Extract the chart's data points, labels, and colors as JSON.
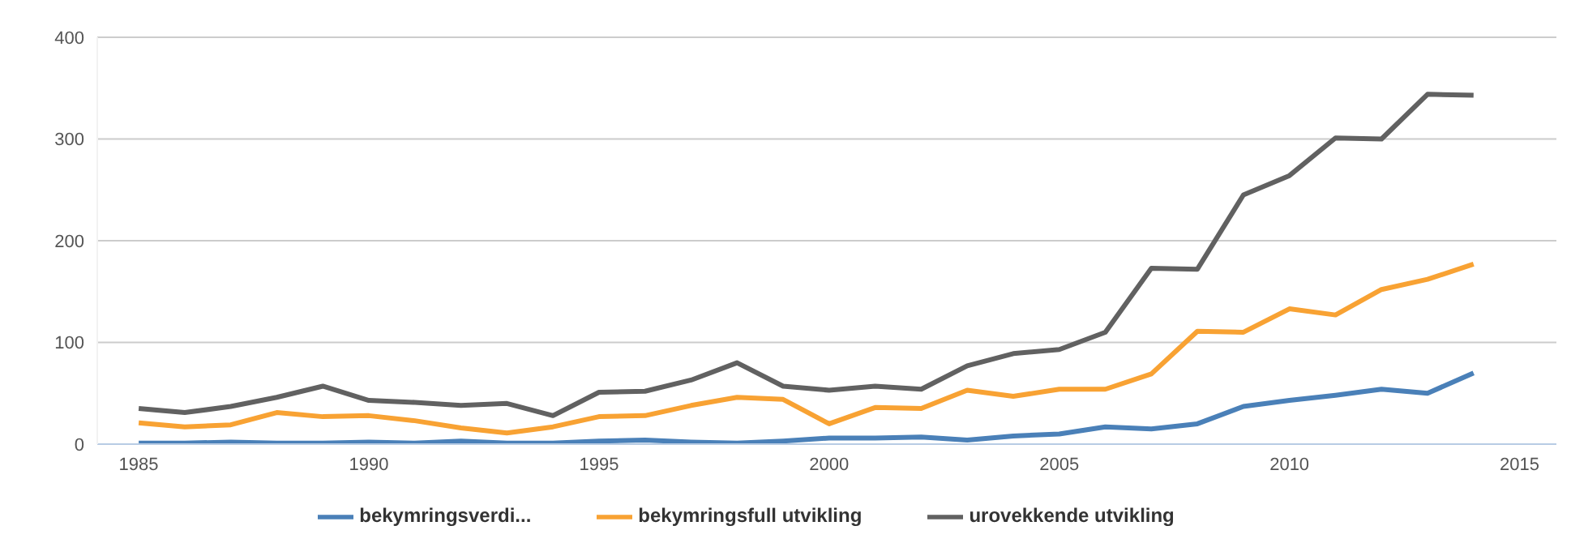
{
  "chart_data": {
    "type": "line",
    "x": [
      1985,
      1986,
      1987,
      1988,
      1989,
      1990,
      1991,
      1992,
      1993,
      1994,
      1995,
      1996,
      1997,
      1998,
      1999,
      2000,
      2001,
      2002,
      2003,
      2004,
      2005,
      2006,
      2007,
      2008,
      2009,
      2010,
      2011,
      2012,
      2013,
      2014
    ],
    "series": [
      {
        "name": "bekymringsverdi...",
        "color": "#4a80b8",
        "values": [
          1,
          1,
          2,
          1,
          1,
          2,
          1,
          3,
          1,
          1,
          3,
          4,
          2,
          1,
          3,
          6,
          6,
          7,
          4,
          8,
          10,
          17,
          15,
          20,
          37,
          43,
          48,
          54,
          50,
          70
        ]
      },
      {
        "name": "bekymringsfull utvikling",
        "color": "#f8a233",
        "values": [
          21,
          17,
          19,
          31,
          27,
          28,
          23,
          16,
          11,
          17,
          27,
          28,
          38,
          46,
          44,
          20,
          36,
          35,
          53,
          47,
          54,
          54,
          69,
          111,
          110,
          133,
          127,
          152,
          162,
          177
        ]
      },
      {
        "name": "urovekkende utvikling",
        "color": "#616161",
        "values": [
          35,
          31,
          37,
          46,
          57,
          43,
          41,
          38,
          40,
          28,
          51,
          52,
          63,
          80,
          57,
          53,
          57,
          54,
          77,
          89,
          93,
          110,
          173,
          172,
          245,
          264,
          301,
          300,
          344,
          343
        ]
      }
    ],
    "xlim": [
      1984.1,
      2015.8
    ],
    "xticks": [
      1985,
      1990,
      1995,
      2000,
      2005,
      2010,
      2015
    ],
    "ylim": [
      0,
      400
    ],
    "yticks": [
      0,
      100,
      200,
      300,
      400
    ],
    "grid": "y",
    "legend": "bottom",
    "marker": "none",
    "line_style": "solid"
  }
}
